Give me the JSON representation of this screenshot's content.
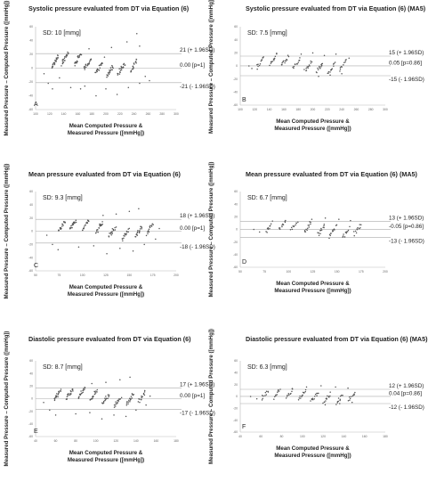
{
  "chart_data": [
    {
      "type": "scatter",
      "panel": "A",
      "title": "Systolic pressure evaluated from DT via Equation (6)",
      "sd_text": "SD: 10 [mmg]",
      "ylabel": "Measured Pressure – Computed Pressure ([mmHg])",
      "xlabel_line1": "Mean Computed Pressure &",
      "xlabel_line2": "Measured Pressure ([mmHg])",
      "xlim": [
        100,
        300
      ],
      "ylim": [
        -60,
        60
      ],
      "xticks": [
        "100",
        "120",
        "140",
        "160",
        "180",
        "200",
        "220",
        "240",
        "260",
        "280",
        "300"
      ],
      "yticks": [
        "60",
        "40",
        "20",
        "0",
        "-20",
        "-40",
        "-60"
      ],
      "upper": 21,
      "mean": 0.0,
      "lower": -21,
      "upper_text": "21 (+ 1.96SD)",
      "mean_text": "0.00 [p=1]",
      "lower_text": "-21 (- 1.96SD)",
      "clusters": [
        [
          128,
          10,
          22
        ],
        [
          142,
          14,
          20
        ],
        [
          160,
          14,
          18
        ],
        [
          174,
          6,
          20
        ],
        [
          190,
          0,
          18
        ],
        [
          206,
          -4,
          18
        ],
        [
          222,
          0,
          20
        ],
        [
          240,
          4,
          16
        ]
      ],
      "outliers": [
        [
          112,
          -8
        ],
        [
          118,
          -22
        ],
        [
          124,
          -30
        ],
        [
          150,
          -28
        ],
        [
          170,
          -26
        ],
        [
          186,
          -40
        ],
        [
          200,
          -30
        ],
        [
          216,
          -38
        ],
        [
          232,
          -28
        ],
        [
          248,
          -22
        ],
        [
          256,
          -12
        ],
        [
          262,
          -18
        ],
        [
          230,
          38
        ],
        [
          248,
          32
        ],
        [
          208,
          30
        ],
        [
          176,
          28
        ],
        [
          164,
          -30
        ],
        [
          134,
          -14
        ],
        [
          198,
          16
        ],
        [
          244,
          50
        ]
      ]
    },
    {
      "type": "scatter",
      "panel": "B",
      "title": "Systolic pressure evaluated from DT via Equation (6) (MA5)",
      "sd_text": "SD: 7.5 [mmg]",
      "ylabel": "Measured Pressure – Computed Pressure ([mmHg])",
      "xlabel_line1": "Mean Computed Pressure &",
      "xlabel_line2": "Measured Pressure ([mmHg])",
      "xlim": [
        100,
        300
      ],
      "ylim": [
        -60,
        60
      ],
      "xticks": [
        "100",
        "120",
        "140",
        "160",
        "180",
        "200",
        "220",
        "240",
        "260",
        "280",
        "300"
      ],
      "yticks": [
        "60",
        "40",
        "20",
        "0",
        "-20",
        "-40",
        "-60"
      ],
      "upper": 15,
      "mean": 0.05,
      "lower": -15,
      "upper_text": "15 (+ 1.96SD)",
      "mean_text": "0.05 [p=0.86]",
      "lower_text": "-15 (- 1.96SD)",
      "clusters": [
        [
          128,
          6,
          12
        ],
        [
          146,
          10,
          12
        ],
        [
          162,
          8,
          12
        ],
        [
          178,
          4,
          12
        ],
        [
          194,
          0,
          12
        ],
        [
          210,
          -2,
          12
        ],
        [
          226,
          -4,
          12
        ],
        [
          242,
          2,
          10
        ]
      ],
      "outliers": [
        [
          112,
          0
        ],
        [
          116,
          -4
        ],
        [
          184,
          18
        ],
        [
          200,
          20
        ],
        [
          216,
          16
        ],
        [
          232,
          18
        ],
        [
          250,
          12
        ],
        [
          208,
          -16
        ],
        [
          224,
          -14
        ],
        [
          240,
          -12
        ]
      ]
    },
    {
      "type": "scatter",
      "panel": "C",
      "title": "Mean pressure evaluated from DT via Equation (6)",
      "sd_text": "SD: 9.3 [mmg]",
      "ylabel": "Measured Pressure – Computed Pressure ([mmHg])",
      "xlabel_line1": "Mean Computed Pressure &",
      "xlabel_line2": "Measured Pressure ([mmHg])",
      "xlim": [
        50,
        200
      ],
      "ylim": [
        -60,
        60
      ],
      "xticks": [
        "50",
        "75",
        "100",
        "125",
        "150",
        "175",
        "200"
      ],
      "yticks": [
        "60",
        "40",
        "20",
        "0",
        "-20",
        "-40",
        "-60"
      ],
      "upper": 18,
      "mean": 0.0,
      "lower": -18,
      "upper_text": "18 (+ 1.96SD)",
      "mean_text": "0.00 [p=1]",
      "lower_text": "-18 (- 1.96SD)",
      "clusters": [
        [
          78,
          8,
          18
        ],
        [
          90,
          10,
          18
        ],
        [
          104,
          10,
          16
        ],
        [
          118,
          6,
          18
        ],
        [
          132,
          0,
          16
        ],
        [
          146,
          -4,
          16
        ],
        [
          160,
          0,
          18
        ],
        [
          172,
          4,
          14
        ]
      ],
      "outliers": [
        [
          62,
          -6
        ],
        [
          68,
          -20
        ],
        [
          74,
          -28
        ],
        [
          96,
          -24
        ],
        [
          112,
          -22
        ],
        [
          126,
          -34
        ],
        [
          140,
          -26
        ],
        [
          154,
          -30
        ],
        [
          166,
          -20
        ],
        [
          178,
          -12
        ],
        [
          160,
          34
        ],
        [
          150,
          30
        ],
        [
          136,
          26
        ],
        [
          122,
          24
        ],
        [
          182,
          4
        ]
      ]
    },
    {
      "type": "scatter",
      "panel": "D",
      "title": "Mean pressure evaluated from DT via Equation (6) (MA5)",
      "sd_text": "SD: 6.7 [mmg]",
      "ylabel": "Measured Pressure – Computed Pressure ([mmHg])",
      "xlabel_line1": "Mean Computed Pressure &",
      "xlabel_line2": "Measured Pressure ([mmHg])",
      "xlim": [
        50,
        200
      ],
      "ylim": [
        -60,
        60
      ],
      "xticks": [
        "50",
        "75",
        "100",
        "125",
        "150",
        "175",
        "200"
      ],
      "yticks": [
        "60",
        "40",
        "20",
        "0",
        "-20",
        "-40",
        "-60"
      ],
      "upper": 13,
      "mean": -0.05,
      "lower": -13,
      "upper_text": "13 (+ 1.96SD)",
      "mean_text": "-0.05 [p=0.86]",
      "lower_text": "-13 (- 1.96SD)",
      "clusters": [
        [
          80,
          4,
          10
        ],
        [
          94,
          8,
          10
        ],
        [
          106,
          6,
          10
        ],
        [
          120,
          4,
          12
        ],
        [
          134,
          0,
          12
        ],
        [
          146,
          -2,
          12
        ],
        [
          160,
          -4,
          10
        ],
        [
          172,
          2,
          10
        ]
      ],
      "outliers": [
        [
          64,
          0
        ],
        [
          70,
          -4
        ],
        [
          124,
          16
        ],
        [
          138,
          18
        ],
        [
          152,
          16
        ],
        [
          164,
          14
        ],
        [
          142,
          -14
        ],
        [
          156,
          -12
        ],
        [
          168,
          -10
        ]
      ]
    },
    {
      "type": "scatter",
      "panel": "E",
      "title": "Diastolic pressure evaluated from DT via Equation (6)",
      "sd_text": "SD: 8.7 [mmg]",
      "ylabel": "Measured Pressure – Computed Pressure ([mmHg])",
      "xlabel_line1": "Mean Computed Pressure &",
      "xlabel_line2": "Measured Pressure ([mmHg])",
      "xlim": [
        40,
        180
      ],
      "ylim": [
        -60,
        60
      ],
      "xticks": [
        "40",
        "60",
        "80",
        "100",
        "120",
        "140",
        "160",
        "180"
      ],
      "yticks": [
        "60",
        "40",
        "20",
        "0",
        "-20",
        "-40",
        "-60"
      ],
      "upper": 17,
      "mean": 0.0,
      "lower": -17,
      "upper_text": "17 (+ 1.96SD)",
      "mean_text": "0.00 [p=1]",
      "lower_text": "-17 (- 1.96SD)",
      "clusters": [
        [
          62,
          6,
          18
        ],
        [
          74,
          8,
          18
        ],
        [
          86,
          10,
          18
        ],
        [
          98,
          6,
          18
        ],
        [
          110,
          0,
          16
        ],
        [
          122,
          -4,
          16
        ],
        [
          134,
          0,
          18
        ],
        [
          146,
          4,
          14
        ]
      ],
      "outliers": [
        [
          48,
          -6
        ],
        [
          54,
          -18
        ],
        [
          60,
          -26
        ],
        [
          80,
          -24
        ],
        [
          94,
          -22
        ],
        [
          106,
          -32
        ],
        [
          118,
          -26
        ],
        [
          130,
          -28
        ],
        [
          140,
          -18
        ],
        [
          150,
          -10
        ],
        [
          134,
          34
        ],
        [
          124,
          30
        ],
        [
          110,
          26
        ],
        [
          96,
          24
        ],
        [
          154,
          4
        ]
      ]
    },
    {
      "type": "scatter",
      "panel": "F",
      "title": "Diastolic pressure evaluated from DT via Equation (6) (MA5)",
      "sd_text": "SD: 6.3 [mmg]",
      "ylabel": "Measured Pressure – Computed Pressure ([mmHg])",
      "xlabel_line1": "Mean Computed Pressure &",
      "xlabel_line2": "Measured Pressure ([mmHg])",
      "xlim": [
        40,
        180
      ],
      "ylim": [
        -60,
        60
      ],
      "xticks": [
        "40",
        "60",
        "80",
        "100",
        "120",
        "140",
        "160",
        "180"
      ],
      "yticks": [
        "60",
        "40",
        "20",
        "0",
        "-20",
        "-40",
        "-60"
      ],
      "upper": 12,
      "mean": 0.04,
      "lower": -12,
      "upper_text": "12 (+ 1.96SD)",
      "mean_text": "0.04 [p=0.86]",
      "lower_text": "-12 (- 1.96SD)",
      "clusters": [
        [
          64,
          4,
          10
        ],
        [
          76,
          6,
          10
        ],
        [
          88,
          6,
          10
        ],
        [
          100,
          4,
          12
        ],
        [
          112,
          0,
          12
        ],
        [
          124,
          -2,
          12
        ],
        [
          136,
          -4,
          10
        ],
        [
          148,
          2,
          10
        ]
      ],
      "outliers": [
        [
          50,
          0
        ],
        [
          56,
          -4
        ],
        [
          104,
          16
        ],
        [
          118,
          18
        ],
        [
          132,
          16
        ],
        [
          144,
          14
        ],
        [
          122,
          -14
        ],
        [
          136,
          -12
        ],
        [
          148,
          -10
        ]
      ]
    }
  ]
}
